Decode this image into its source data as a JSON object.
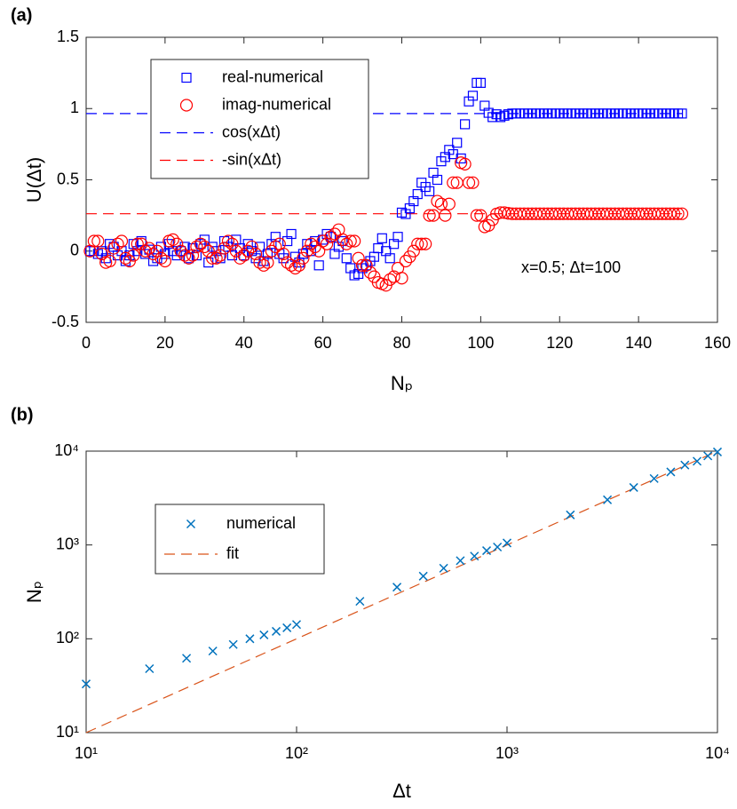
{
  "chart_data": [
    {
      "type": "scatter",
      "title": "(a)",
      "xlabel": "Nₚ",
      "ylabel": "U(Δt)",
      "annotation": "x=0.5; Δt=100",
      "xlim": [
        0,
        160
      ],
      "xticks": [
        0,
        20,
        40,
        60,
        80,
        100,
        120,
        140,
        160
      ],
      "ylim": [
        -0.5,
        1.5
      ],
      "yticks": [
        -0.5,
        0,
        0.5,
        1,
        1.5
      ],
      "legend": "upper left",
      "x": [
        1,
        2,
        3,
        4,
        5,
        6,
        7,
        8,
        9,
        10,
        11,
        12,
        13,
        14,
        15,
        16,
        17,
        18,
        19,
        20,
        21,
        22,
        23,
        24,
        25,
        26,
        27,
        28,
        29,
        30,
        31,
        32,
        33,
        34,
        35,
        36,
        37,
        38,
        39,
        40,
        41,
        42,
        43,
        44,
        45,
        46,
        47,
        48,
        49,
        50,
        51,
        52,
        53,
        54,
        55,
        56,
        57,
        58,
        59,
        60,
        61,
        62,
        63,
        64,
        65,
        66,
        67,
        68,
        69,
        70,
        71,
        72,
        73,
        74,
        75,
        76,
        77,
        78,
        79,
        80,
        81,
        82,
        83,
        84,
        85,
        86,
        87,
        88,
        89,
        90,
        91,
        92,
        93,
        94,
        95,
        96,
        97,
        98,
        99,
        100,
        101,
        102,
        103,
        104,
        105,
        106,
        107,
        108,
        109,
        110,
        111,
        112,
        113,
        114,
        115,
        116,
        117,
        118,
        119,
        120,
        121,
        122,
        123,
        124,
        125,
        126,
        127,
        128,
        129,
        130,
        131,
        132,
        133,
        134,
        135,
        136,
        137,
        138,
        139,
        140,
        141,
        142,
        143,
        144,
        145,
        146,
        147,
        148,
        149,
        150,
        151
      ],
      "series": [
        {
          "name": "real-numerical",
          "color": "#0000ff",
          "marker": "square",
          "values": [
            0,
            0,
            -0.02,
            0,
            -0.05,
            0.05,
            0.03,
            -0.03,
            0,
            -0.07,
            -0.03,
            0.05,
            0,
            0.07,
            -0.02,
            0.01,
            -0.07,
            -0.05,
            0.03,
            -0.02,
            0.05,
            0,
            -0.03,
            0,
            0.03,
            -0.05,
            0.02,
            -0.03,
            0.05,
            0.08,
            -0.08,
            0.03,
            0,
            -0.05,
            0.07,
            0.03,
            -0.03,
            0.08,
            0.02,
            -0.03,
            0.05,
            0,
            -0.05,
            0.03,
            -0.07,
            -0.02,
            0.05,
            0.1,
            -0.02,
            -0.05,
            0.07,
            0.12,
            -0.04,
            -0.08,
            -0.02,
            0.05,
            0,
            0.07,
            -0.1,
            0.08,
            0.12,
            0.1,
            -0.02,
            0.03,
            0.07,
            -0.05,
            -0.12,
            -0.17,
            -0.16,
            -0.12,
            -0.1,
            -0.07,
            -0.04,
            0.02,
            0.09,
            0,
            -0.05,
            0.05,
            0.1,
            0.27,
            0.26,
            0.3,
            0.35,
            0.4,
            0.48,
            0.45,
            0.42,
            0.55,
            0.5,
            0.63,
            0.66,
            0.71,
            0.68,
            0.76,
            0.65,
            0.89,
            1.05,
            1.09,
            1.18,
            1.18,
            1.02,
            0.97,
            0.94,
            0.96,
            0.94,
            0.95,
            0.96,
            0.965,
            0.965,
            0.965,
            0.965,
            0.965,
            0.965,
            0.965,
            0.965,
            0.965,
            0.965,
            0.965,
            0.965,
            0.965,
            0.965,
            0.965,
            0.965,
            0.965,
            0.965,
            0.965,
            0.965,
            0.965,
            0.965,
            0.965,
            0.965,
            0.965,
            0.965,
            0.965,
            0.965,
            0.965,
            0.965,
            0.965,
            0.965,
            0.965,
            0.965,
            0.965,
            0.965,
            0.965,
            0.965,
            0.965,
            0.965,
            0.965,
            0.965,
            0.965,
            0.965
          ]
        },
        {
          "name": "imag-numerical",
          "color": "#ff0000",
          "marker": "circle",
          "values": [
            0,
            0.07,
            0.07,
            -0.02,
            -0.08,
            -0.07,
            0.02,
            0.05,
            0.07,
            -0.05,
            -0.07,
            -0.03,
            0.05,
            0.05,
            0,
            0.02,
            -0.02,
            0,
            -0.05,
            -0.07,
            0.07,
            0.08,
            0.05,
            0,
            -0.03,
            -0.05,
            -0.03,
            0.03,
            0.05,
            0.03,
            0,
            -0.05,
            -0.05,
            -0.03,
            0.02,
            0.07,
            0.05,
            0,
            -0.05,
            -0.03,
            0,
            0.03,
            -0.02,
            -0.08,
            -0.1,
            -0.08,
            0,
            0.03,
            0.05,
            -0.02,
            -0.08,
            -0.1,
            -0.12,
            -0.1,
            -0.05,
            0,
            0.05,
            0.03,
            0,
            0.07,
            0.05,
            0.1,
            0.12,
            0.15,
            0.08,
            0.05,
            0.07,
            0.07,
            -0.05,
            -0.1,
            -0.1,
            -0.15,
            -0.18,
            -0.22,
            -0.23,
            -0.24,
            -0.2,
            -0.18,
            -0.12,
            -0.19,
            -0.07,
            -0.04,
            0,
            0.05,
            0.05,
            0.05,
            0.25,
            0.25,
            0.35,
            0.33,
            0.25,
            0.33,
            0.48,
            0.48,
            0.62,
            0.61,
            0.48,
            0.48,
            0.25,
            0.25,
            0.17,
            0.18,
            0.22,
            0.26,
            0.27,
            0.27,
            0.265,
            0.262,
            0.262,
            0.262,
            0.262,
            0.262,
            0.262,
            0.262,
            0.262,
            0.262,
            0.262,
            0.262,
            0.262,
            0.262,
            0.262,
            0.262,
            0.262,
            0.262,
            0.262,
            0.262,
            0.262,
            0.262,
            0.262,
            0.262,
            0.262,
            0.262,
            0.262,
            0.262,
            0.262,
            0.262,
            0.262,
            0.262,
            0.262,
            0.262,
            0.262,
            0.262,
            0.262,
            0.262,
            0.262,
            0.262,
            0.262,
            0.262,
            0.262,
            0.262,
            0.262
          ]
        },
        {
          "name": "cos(xΔt)",
          "color": "#0000ff",
          "marker": "dashed",
          "x": [
            0,
            151
          ],
          "values": [
            0.965,
            0.965
          ]
        },
        {
          "name": "-sin(xΔt)",
          "color": "#ff0000",
          "marker": "dashed",
          "x": [
            0,
            151
          ],
          "values": [
            0.262,
            0.262
          ]
        }
      ]
    },
    {
      "type": "scatter",
      "title": "(b)",
      "xlabel": "Δt",
      "ylabel": "Nₚ",
      "xscale": "log",
      "yscale": "log",
      "xlim": [
        10,
        10000
      ],
      "xticks": [
        {
          "value": 10,
          "label": "10¹"
        },
        {
          "value": 100,
          "label": "10²"
        },
        {
          "value": 1000,
          "label": "10³"
        },
        {
          "value": 10000,
          "label": "10⁴"
        }
      ],
      "ylim": [
        10,
        10000
      ],
      "yticks": [
        {
          "value": 10,
          "label": "10¹"
        },
        {
          "value": 100,
          "label": "10²"
        },
        {
          "value": 1000,
          "label": "10³"
        },
        {
          "value": 10000,
          "label": "10⁴"
        }
      ],
      "legend": "upper left",
      "x": [
        10,
        20,
        30,
        40,
        50,
        60,
        70,
        80,
        90,
        100,
        200,
        300,
        400,
        500,
        600,
        700,
        800,
        900,
        1000,
        2000,
        3000,
        4000,
        5000,
        6000,
        7000,
        8000,
        9000,
        10000
      ],
      "series": [
        {
          "name": "numerical",
          "color": "#0072bd",
          "marker": "x",
          "values": [
            33,
            48,
            62,
            74,
            87,
            100,
            110,
            120,
            131,
            142,
            251,
            355,
            465,
            565,
            680,
            760,
            870,
            950,
            1050,
            2090,
            3030,
            4100,
            5100,
            6000,
            7100,
            7800,
            8900,
            9800
          ]
        },
        {
          "name": "fit",
          "color": "#d95319",
          "marker": "dashed",
          "x": [
            10,
            10000
          ],
          "values": [
            10,
            10000
          ]
        }
      ]
    }
  ]
}
